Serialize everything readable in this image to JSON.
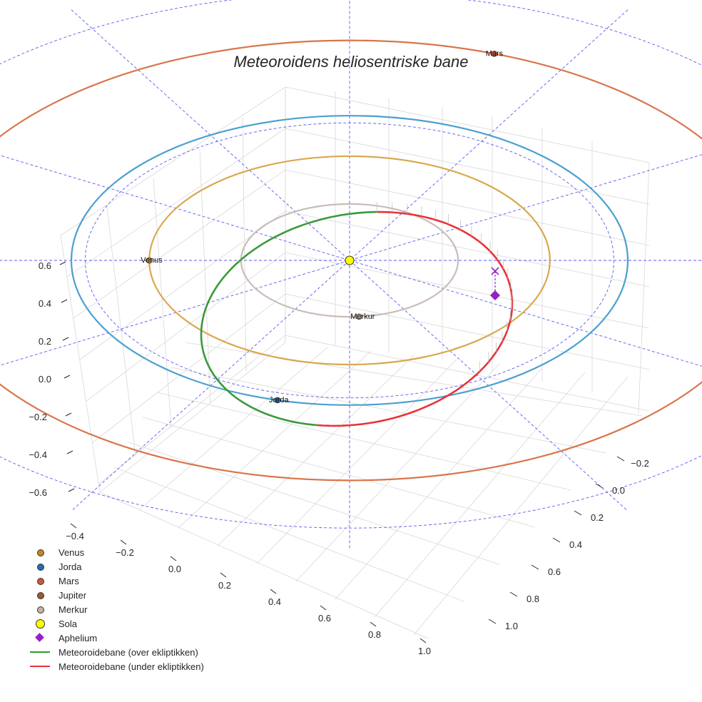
{
  "chart_data": {
    "type": "line3d",
    "title": "Meteoroidens heliosentriske bane",
    "x_ticks": [
      "−0.4",
      "−0.2",
      "0.0",
      "0.2",
      "0.4",
      "0.6",
      "0.8",
      "1.0"
    ],
    "y_ticks": [
      "−0.2",
      "0.0",
      "0.2",
      "0.4",
      "0.6",
      "0.8",
      "1.0"
    ],
    "z_ticks": [
      "0.6",
      "0.4",
      "0.2",
      "0.0",
      "−0.2",
      "−0.4",
      "−0.6"
    ],
    "planets": [
      {
        "name": "Venus",
        "a": 0.72,
        "angle_deg": 180,
        "color": "#c8842a",
        "orbit_color": "#d9a84e",
        "label": "Venus"
      },
      {
        "name": "Jorda",
        "a": 1.0,
        "angle_deg": 255,
        "color": "#1f6fb4",
        "orbit_color": "#4aa0cf",
        "label": "Jorda"
      },
      {
        "name": "Mars",
        "a": 1.52,
        "angle_deg": 70,
        "color": "#d2553a",
        "orbit_color": "#d9754a",
        "label": "Mars"
      },
      {
        "name": "Jupiter",
        "color": "#9a5a30"
      },
      {
        "name": "Merkur",
        "a": 0.39,
        "angle_deg": 275,
        "color": "#c7b3a6",
        "orbit_color": "#c9bcb8",
        "label": "Merkur"
      }
    ],
    "sun": {
      "name": "Sola",
      "color": "#ffff00"
    },
    "aphelium": {
      "name": "Aphelium",
      "color": "#9420c8"
    },
    "meteoroid": {
      "over_label": "Meteoroidebane (over ekliptikken)",
      "under_label": "Meteoroidebane (under ekliptikken)",
      "over_color": "#3a9a3a",
      "under_color": "#e8333a"
    },
    "grid": true,
    "legend_position": "lower-left"
  },
  "legend": [
    {
      "label": "Venus",
      "kind": "dot",
      "color": "#c8842a"
    },
    {
      "label": "Jorda",
      "kind": "dot",
      "color": "#1f6fb4"
    },
    {
      "label": "Mars",
      "kind": "dot",
      "color": "#d2553a"
    },
    {
      "label": "Jupiter",
      "kind": "dot",
      "color": "#9a5a30"
    },
    {
      "label": "Merkur",
      "kind": "dot",
      "color": "#c7b3a6"
    },
    {
      "label": "Sola",
      "kind": "bigdot",
      "color": "#ffff00"
    },
    {
      "label": "Aphelium",
      "kind": "diamond",
      "color": "#9420c8"
    },
    {
      "label": "Meteoroidebane (over ekliptikken)",
      "kind": "line",
      "color": "#2a9a2a"
    },
    {
      "label": "Meteoroidebane (under ekliptikken)",
      "kind": "line",
      "color": "#e8333a"
    }
  ]
}
